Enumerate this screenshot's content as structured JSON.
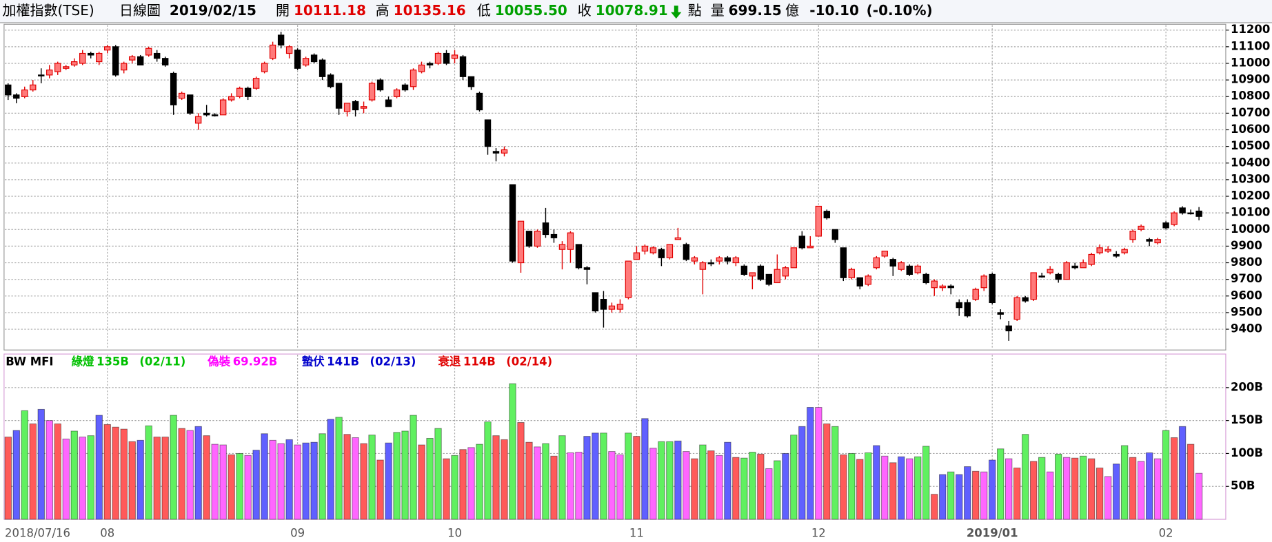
{
  "header": {
    "title": "加權指數(TSE)",
    "period": "日線圖",
    "date": "2019/02/15",
    "quotes": [
      {
        "label": "開",
        "value": "10111.18",
        "color": "#e00000"
      },
      {
        "label": "高",
        "value": "10135.16",
        "color": "#e00000"
      },
      {
        "label": "低",
        "value": "10055.50",
        "color": "#00a000"
      },
      {
        "label": "收",
        "value": "10078.91",
        "color": "#00a000"
      }
    ],
    "unit": "點",
    "volume_label": "量",
    "volume": "699.15",
    "volume_unit": "億",
    "change": "-10.10",
    "change_pct": "(-0.10%)"
  },
  "chart_data": [
    {
      "type": "candlestick",
      "up_color": "#e00000",
      "up_fill": "#ff7a7a",
      "down_color": "#000000",
      "ylim": [
        9275,
        11235
      ],
      "yticks": [
        9400,
        9500,
        9600,
        9700,
        9800,
        9900,
        10000,
        10100,
        10200,
        10300,
        10400,
        10500,
        10600,
        10700,
        10800,
        10900,
        11000,
        11100,
        11200
      ],
      "grid": true,
      "open": [
        10870,
        10810,
        10800,
        10840,
        10930,
        10930,
        10950,
        10970,
        10990,
        11000,
        11060,
        11010,
        11080,
        11100,
        10960,
        11020,
        11040,
        11050,
        11060,
        11030,
        10940,
        10790,
        10810,
        10640,
        10700,
        10690,
        10690,
        10780,
        10800,
        10850,
        10850,
        10950,
        11030,
        11170,
        11060,
        11080,
        10990,
        11050,
        11020,
        10930,
        10880,
        10710,
        10770,
        10730,
        10780,
        10900,
        10780,
        10800,
        10870,
        10860,
        10950,
        11000,
        11000,
        11060,
        11030,
        11040,
        10920,
        10820,
        10660,
        10470,
        10460,
        10270,
        9800,
        9990,
        9900,
        10040,
        9970,
        9880,
        9880,
        9910,
        9770,
        9620,
        9580,
        9520,
        9520,
        9590,
        9820,
        9870,
        9860,
        9880,
        9830,
        9940,
        9910,
        9810,
        9760,
        9800,
        9810,
        9830,
        9800,
        9780,
        9720,
        9780,
        9730,
        9680,
        9720,
        9770,
        9960,
        9890,
        9960,
        10110,
        10000,
        9890,
        9710,
        9710,
        9670,
        9770,
        9840,
        9820,
        9760,
        9780,
        9740,
        9730,
        9650,
        9650,
        9660,
        9560,
        9560,
        9580,
        9650,
        9730,
        9500,
        9420,
        9460,
        9590,
        9580,
        9720,
        9740,
        9730,
        9700,
        9780,
        9770,
        9790,
        9860,
        9870,
        9850,
        9860,
        9940,
        10000,
        9940,
        9920,
        10040,
        10030,
        10130,
        10100,
        10111.18
      ],
      "high": [
        10880,
        10820,
        10860,
        10900,
        10970,
        10990,
        11010,
        10990,
        11030,
        11080,
        11070,
        11070,
        11110,
        11110,
        11010,
        11050,
        11050,
        11100,
        11080,
        11040,
        10950,
        10830,
        10810,
        10700,
        10750,
        10700,
        10790,
        10820,
        10860,
        10860,
        10920,
        11010,
        11130,
        11190,
        11110,
        11090,
        11040,
        11060,
        11030,
        10940,
        10880,
        10760,
        10780,
        10770,
        10890,
        10910,
        10800,
        10850,
        10880,
        10970,
        11010,
        11010,
        11070,
        11080,
        11080,
        11050,
        10920,
        10830,
        10660,
        10490,
        10500,
        10270,
        10050,
        9990,
        10000,
        10130,
        10000,
        9930,
        9990,
        9910,
        9780,
        9620,
        9630,
        9560,
        9580,
        9810,
        9900,
        9910,
        9900,
        9890,
        9910,
        10010,
        9920,
        9840,
        9810,
        9820,
        9840,
        9840,
        9840,
        9790,
        9740,
        9790,
        9730,
        9850,
        9780,
        9890,
        9990,
        9960,
        10140,
        10120,
        10000,
        9890,
        9770,
        9710,
        9730,
        9840,
        9870,
        9830,
        9810,
        9790,
        9790,
        9740,
        9700,
        9670,
        9670,
        9580,
        9580,
        9650,
        9730,
        9740,
        9520,
        9450,
        9600,
        9600,
        9740,
        9740,
        9780,
        9740,
        9810,
        9800,
        9820,
        9860,
        9910,
        9900,
        9870,
        9890,
        10000,
        10030,
        9950,
        9950,
        10050,
        10110,
        10140,
        10120,
        10135.16
      ],
      "low": [
        10780,
        10760,
        10790,
        10830,
        10880,
        10910,
        10930,
        10960,
        10980,
        10990,
        11030,
        10990,
        11060,
        10920,
        10940,
        11000,
        10990,
        11040,
        11010,
        10980,
        10690,
        10780,
        10690,
        10600,
        10680,
        10680,
        10690,
        10770,
        10790,
        10780,
        10840,
        10940,
        11020,
        11090,
        11030,
        10960,
        10980,
        11000,
        10900,
        10850,
        10690,
        10680,
        10680,
        10700,
        10770,
        10830,
        10740,
        10790,
        10830,
        10840,
        10940,
        10970,
        10990,
        10990,
        11000,
        10900,
        10840,
        10710,
        10450,
        10410,
        10440,
        9800,
        9740,
        9890,
        9890,
        9950,
        9920,
        9760,
        9800,
        9760,
        9670,
        9500,
        9410,
        9500,
        9500,
        9580,
        9820,
        9850,
        9850,
        9780,
        9820,
        9940,
        9810,
        9790,
        9610,
        9780,
        9790,
        9790,
        9780,
        9720,
        9640,
        9690,
        9660,
        9680,
        9700,
        9770,
        9880,
        9890,
        9960,
        10060,
        9920,
        9690,
        9700,
        9640,
        9660,
        9760,
        9830,
        9720,
        9750,
        9720,
        9730,
        9670,
        9600,
        9630,
        9610,
        9480,
        9470,
        9570,
        9630,
        9550,
        9460,
        9330,
        9450,
        9560,
        9570,
        9710,
        9730,
        9680,
        9700,
        9760,
        9770,
        9780,
        9850,
        9860,
        9830,
        9850,
        9920,
        9990,
        9900,
        9910,
        10000,
        10020,
        10090,
        10090,
        10055.5
      ],
      "close": [
        10810,
        10790,
        10840,
        10870,
        10930,
        10960,
        11000,
        10980,
        11010,
        11060,
        11050,
        11060,
        11100,
        10930,
        11000,
        11040,
        10990,
        11090,
        11030,
        10990,
        10750,
        10820,
        10700,
        10680,
        10690,
        10690,
        10780,
        10800,
        10850,
        10800,
        10910,
        11000,
        11110,
        11110,
        11100,
        10970,
        11030,
        11010,
        10920,
        10860,
        10730,
        10760,
        10720,
        10740,
        10880,
        10840,
        10740,
        10840,
        10840,
        10960,
        10990,
        10990,
        11060,
        11000,
        11050,
        10920,
        10860,
        10720,
        10500,
        10460,
        10480,
        9810,
        10050,
        9900,
        9990,
        9970,
        9950,
        9910,
        9980,
        9770,
        9760,
        9510,
        9520,
        9540,
        9550,
        9810,
        9860,
        9900,
        9890,
        9830,
        9910,
        9950,
        9820,
        9830,
        9800,
        9800,
        9830,
        9810,
        9830,
        9730,
        9740,
        9700,
        9670,
        9760,
        9770,
        9890,
        9890,
        9900,
        10140,
        10070,
        9940,
        9710,
        9760,
        9660,
        9720,
        9830,
        9870,
        9780,
        9800,
        9730,
        9780,
        9680,
        9690,
        9660,
        9650,
        9530,
        9480,
        9640,
        9720,
        9560,
        9490,
        9390,
        9590,
        9570,
        9740,
        9720,
        9760,
        9700,
        9800,
        9770,
        9800,
        9850,
        9890,
        9880,
        9840,
        9880,
        9990,
        10020,
        9930,
        9940,
        10010,
        10100,
        10100,
        10100,
        10078.91
      ]
    },
    {
      "type": "bar",
      "title": "BW MFI",
      "ylim": [
        0,
        251
      ],
      "yticks": [
        {
          "value": 50,
          "label": "50B"
        },
        {
          "value": 100,
          "label": "100B"
        },
        {
          "value": 150,
          "label": "150B"
        },
        {
          "value": 200,
          "label": "200B"
        }
      ],
      "grid": true,
      "legend": [
        {
          "name": "綠燈",
          "color": "#00c000",
          "value": {
            "value": 135,
            "label": "135B"
          },
          "date": "(02/11)"
        },
        {
          "name": "偽裝",
          "color": "#ff00ff",
          "value": {
            "value": 69.92,
            "label": "69.92B"
          }
        },
        {
          "name": "蟄伏",
          "color": "#0000cc",
          "value": {
            "value": 141,
            "label": "141B"
          },
          "date": "(02/13)"
        },
        {
          "name": "衰退",
          "color": "#e00000",
          "value": {
            "value": 114,
            "label": "114B"
          },
          "date": "(02/14)"
        }
      ],
      "categories": [
        "2018/07/16",
        null,
        null,
        null,
        null,
        null,
        null,
        null,
        null,
        null,
        null,
        null,
        "08",
        null,
        null,
        null,
        null,
        null,
        null,
        null,
        null,
        null,
        null,
        null,
        null,
        null,
        null,
        null,
        null,
        null,
        null,
        null,
        null,
        null,
        null,
        "09",
        null,
        null,
        null,
        null,
        null,
        null,
        null,
        null,
        null,
        null,
        null,
        null,
        null,
        null,
        null,
        null,
        null,
        null,
        "10",
        null,
        null,
        null,
        null,
        null,
        null,
        null,
        null,
        null,
        null,
        null,
        null,
        null,
        null,
        null,
        null,
        null,
        null,
        null,
        null,
        null,
        "11",
        null,
        null,
        null,
        null,
        null,
        null,
        null,
        null,
        null,
        null,
        null,
        null,
        null,
        null,
        null,
        null,
        null,
        null,
        null,
        null,
        null,
        "12",
        null,
        null,
        null,
        null,
        null,
        null,
        null,
        null,
        null,
        null,
        null,
        null,
        null,
        null,
        null,
        null,
        null,
        null,
        null,
        null,
        "2019/01",
        null,
        null,
        null,
        null,
        null,
        null,
        null,
        null,
        null,
        null,
        null,
        null,
        null,
        null,
        null,
        null,
        null,
        null,
        null,
        null,
        "02",
        null,
        null,
        null,
        null
      ],
      "values": [
        125,
        135,
        165,
        145,
        167,
        150,
        145,
        122,
        134,
        125,
        127,
        158,
        144,
        140,
        137,
        118,
        120,
        142,
        125,
        125,
        158,
        138,
        135,
        141,
        127,
        114,
        113,
        98,
        100,
        97,
        105,
        130,
        120,
        115,
        121,
        113,
        116,
        117,
        130,
        152,
        155,
        129,
        124,
        115,
        128,
        90,
        116,
        132,
        134,
        158,
        113,
        123,
        138,
        92,
        97,
        106,
        109,
        114,
        148,
        127,
        121,
        206,
        147,
        117,
        110,
        115,
        96,
        127,
        101,
        102,
        126,
        131,
        131,
        103,
        98,
        131,
        126,
        153,
        108,
        118,
        118,
        119,
        103,
        92,
        113,
        104,
        97,
        117,
        94,
        93,
        102,
        99,
        77,
        89,
        100,
        128,
        141,
        170,
        170,
        145,
        141,
        98,
        100,
        91,
        101,
        112,
        96,
        86,
        95,
        92,
        95,
        111,
        38,
        68,
        72,
        68,
        80,
        73,
        72,
        90,
        107,
        92,
        78,
        129,
        88,
        94,
        72,
        99,
        94,
        93,
        96,
        92,
        78,
        65,
        84,
        112,
        94,
        88,
        101,
        92,
        135,
        124,
        141,
        114,
        69.92
      ],
      "colors": [
        "#ff5a5a",
        "#6060ff",
        "#60f060",
        "#ff5a5a",
        "#6060ff",
        "#ff66ff",
        "#ff5a5a",
        "#ff66ff",
        "#60f060",
        "#ff66ff",
        "#60f060",
        "#6060ff",
        "#ff5a5a",
        "#ff5a5a",
        "#ff5a5a",
        "#ff5a5a",
        "#6060ff",
        "#60f060",
        "#ff5a5a",
        "#ff5a5a",
        "#60f060",
        "#ff5a5a",
        "#ff66ff",
        "#6060ff",
        "#ff5a5a",
        "#ff66ff",
        "#ff66ff",
        "#ff5a5a",
        "#60f060",
        "#ff66ff",
        "#6060ff",
        "#6060ff",
        "#ff66ff",
        "#ff66ff",
        "#6060ff",
        "#ff66ff",
        "#6060ff",
        "#6060ff",
        "#60f060",
        "#6060ff",
        "#60f060",
        "#ff5a5a",
        "#ff66ff",
        "#ff5a5a",
        "#60f060",
        "#ff5a5a",
        "#6060ff",
        "#60f060",
        "#60f060",
        "#60f060",
        "#ff5a5a",
        "#60f060",
        "#60f060",
        "#ff5a5a",
        "#60f060",
        "#ff5a5a",
        "#ff66ff",
        "#60f060",
        "#60f060",
        "#ff5a5a",
        "#ff5a5a",
        "#60f060",
        "#ff5a5a",
        "#ff5a5a",
        "#ff66ff",
        "#60f060",
        "#ff5a5a",
        "#60f060",
        "#ff66ff",
        "#ff66ff",
        "#6060ff",
        "#6060ff",
        "#60f060",
        "#ff66ff",
        "#ff66ff",
        "#60f060",
        "#ff5a5a",
        "#6060ff",
        "#ff66ff",
        "#60f060",
        "#60f060",
        "#6060ff",
        "#ff66ff",
        "#ff5a5a",
        "#60f060",
        "#ff5a5a",
        "#ff66ff",
        "#6060ff",
        "#ff5a5a",
        "#60f060",
        "#60f060",
        "#ff5a5a",
        "#ff66ff",
        "#60f060",
        "#6060ff",
        "#60f060",
        "#6060ff",
        "#6060ff",
        "#ff66ff",
        "#ff5a5a",
        "#60f060",
        "#ff5a5a",
        "#60f060",
        "#ff5a5a",
        "#60f060",
        "#6060ff",
        "#ff66ff",
        "#ff5a5a",
        "#6060ff",
        "#ff66ff",
        "#60f060",
        "#60f060",
        "#ff5a5a",
        "#6060ff",
        "#60f060",
        "#6060ff",
        "#6060ff",
        "#ff5a5a",
        "#ff66ff",
        "#6060ff",
        "#60f060",
        "#ff66ff",
        "#ff5a5a",
        "#60f060",
        "#ff5a5a",
        "#60f060",
        "#ff66ff",
        "#60f060",
        "#ff66ff",
        "#ff5a5a",
        "#60f060",
        "#ff5a5a",
        "#ff5a5a",
        "#ff66ff",
        "#6060ff",
        "#60f060",
        "#ff5a5a",
        "#ff66ff",
        "#6060ff",
        "#ff66ff",
        "#60f060",
        "#ff5a5a",
        "#6060ff",
        "#ff5a5a",
        "#ff66ff"
      ]
    }
  ]
}
